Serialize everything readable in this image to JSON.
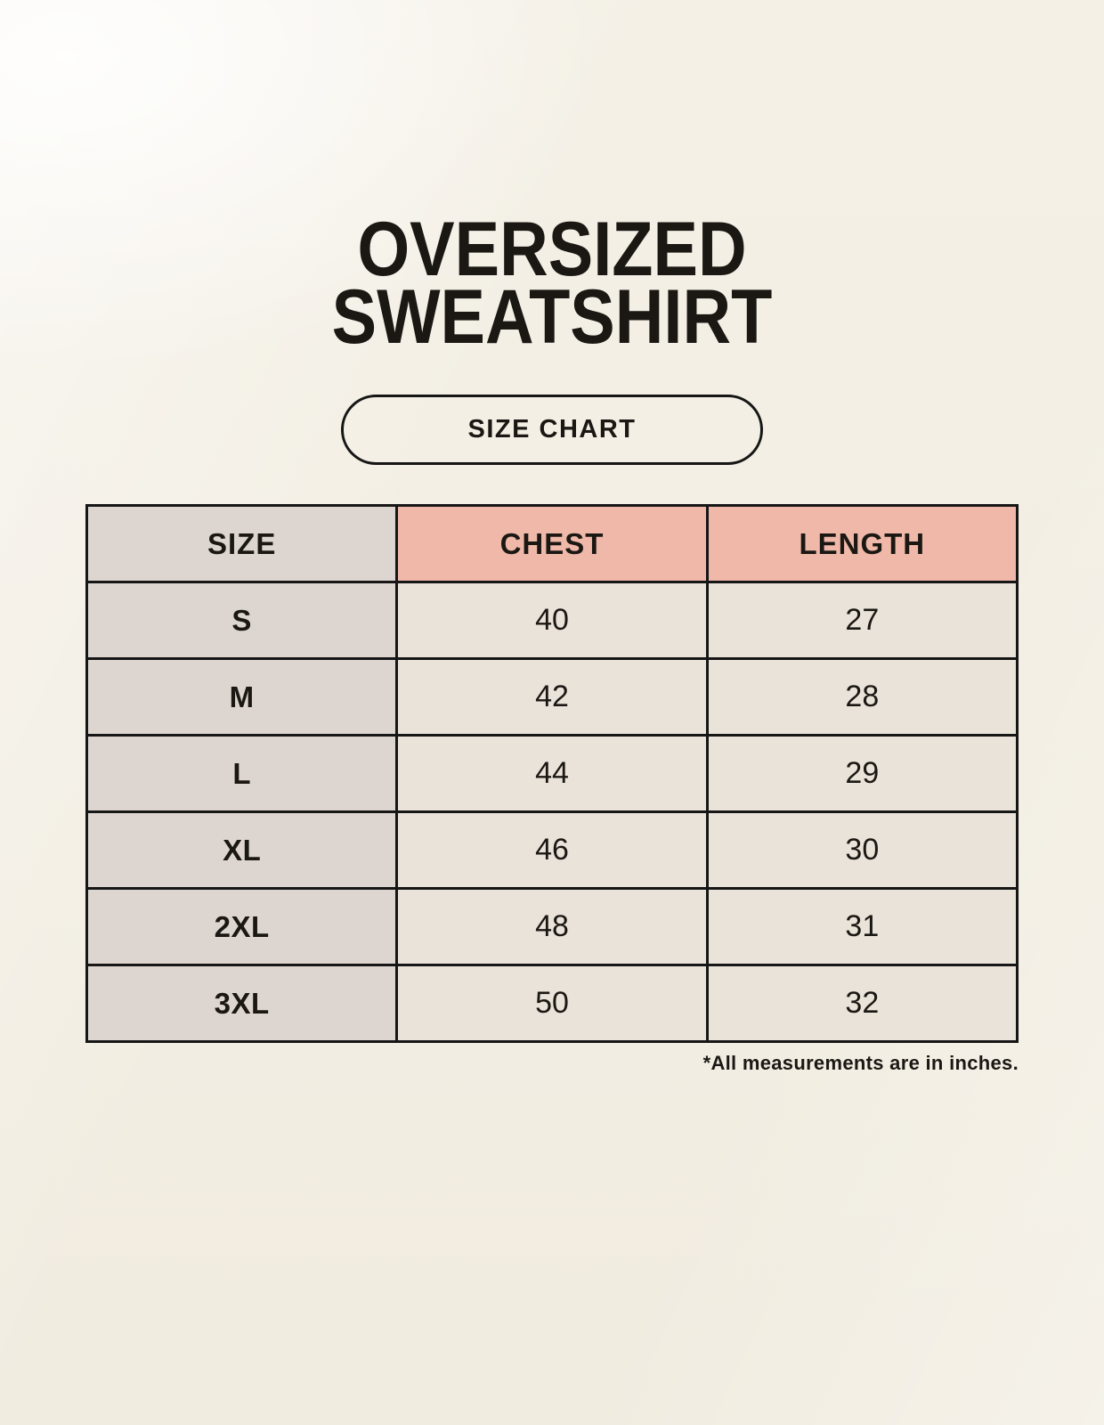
{
  "header": {
    "title_line1": "OVERSIZED",
    "title_line2": "SWEATSHIRT",
    "badge_label": "SIZE CHART"
  },
  "chart_data": {
    "type": "table",
    "title": "Oversized Sweatshirt Size Chart",
    "columns": [
      "SIZE",
      "CHEST",
      "LENGTH"
    ],
    "rows": [
      [
        "S",
        "40",
        "27"
      ],
      [
        "M",
        "42",
        "28"
      ],
      [
        "L",
        "44",
        "29"
      ],
      [
        "XL",
        "46",
        "30"
      ],
      [
        "2XL",
        "48",
        "31"
      ],
      [
        "3XL",
        "50",
        "32"
      ]
    ],
    "units": "inches"
  },
  "footer": {
    "note": "*All measurements are in inches."
  },
  "colors": {
    "background": "#f4f0e6",
    "header_accent": "#efb8a8",
    "size_column": "#ddd6d0",
    "cell_background": "#eae3d9",
    "table_border": "#161616",
    "text": "#1b1814"
  }
}
